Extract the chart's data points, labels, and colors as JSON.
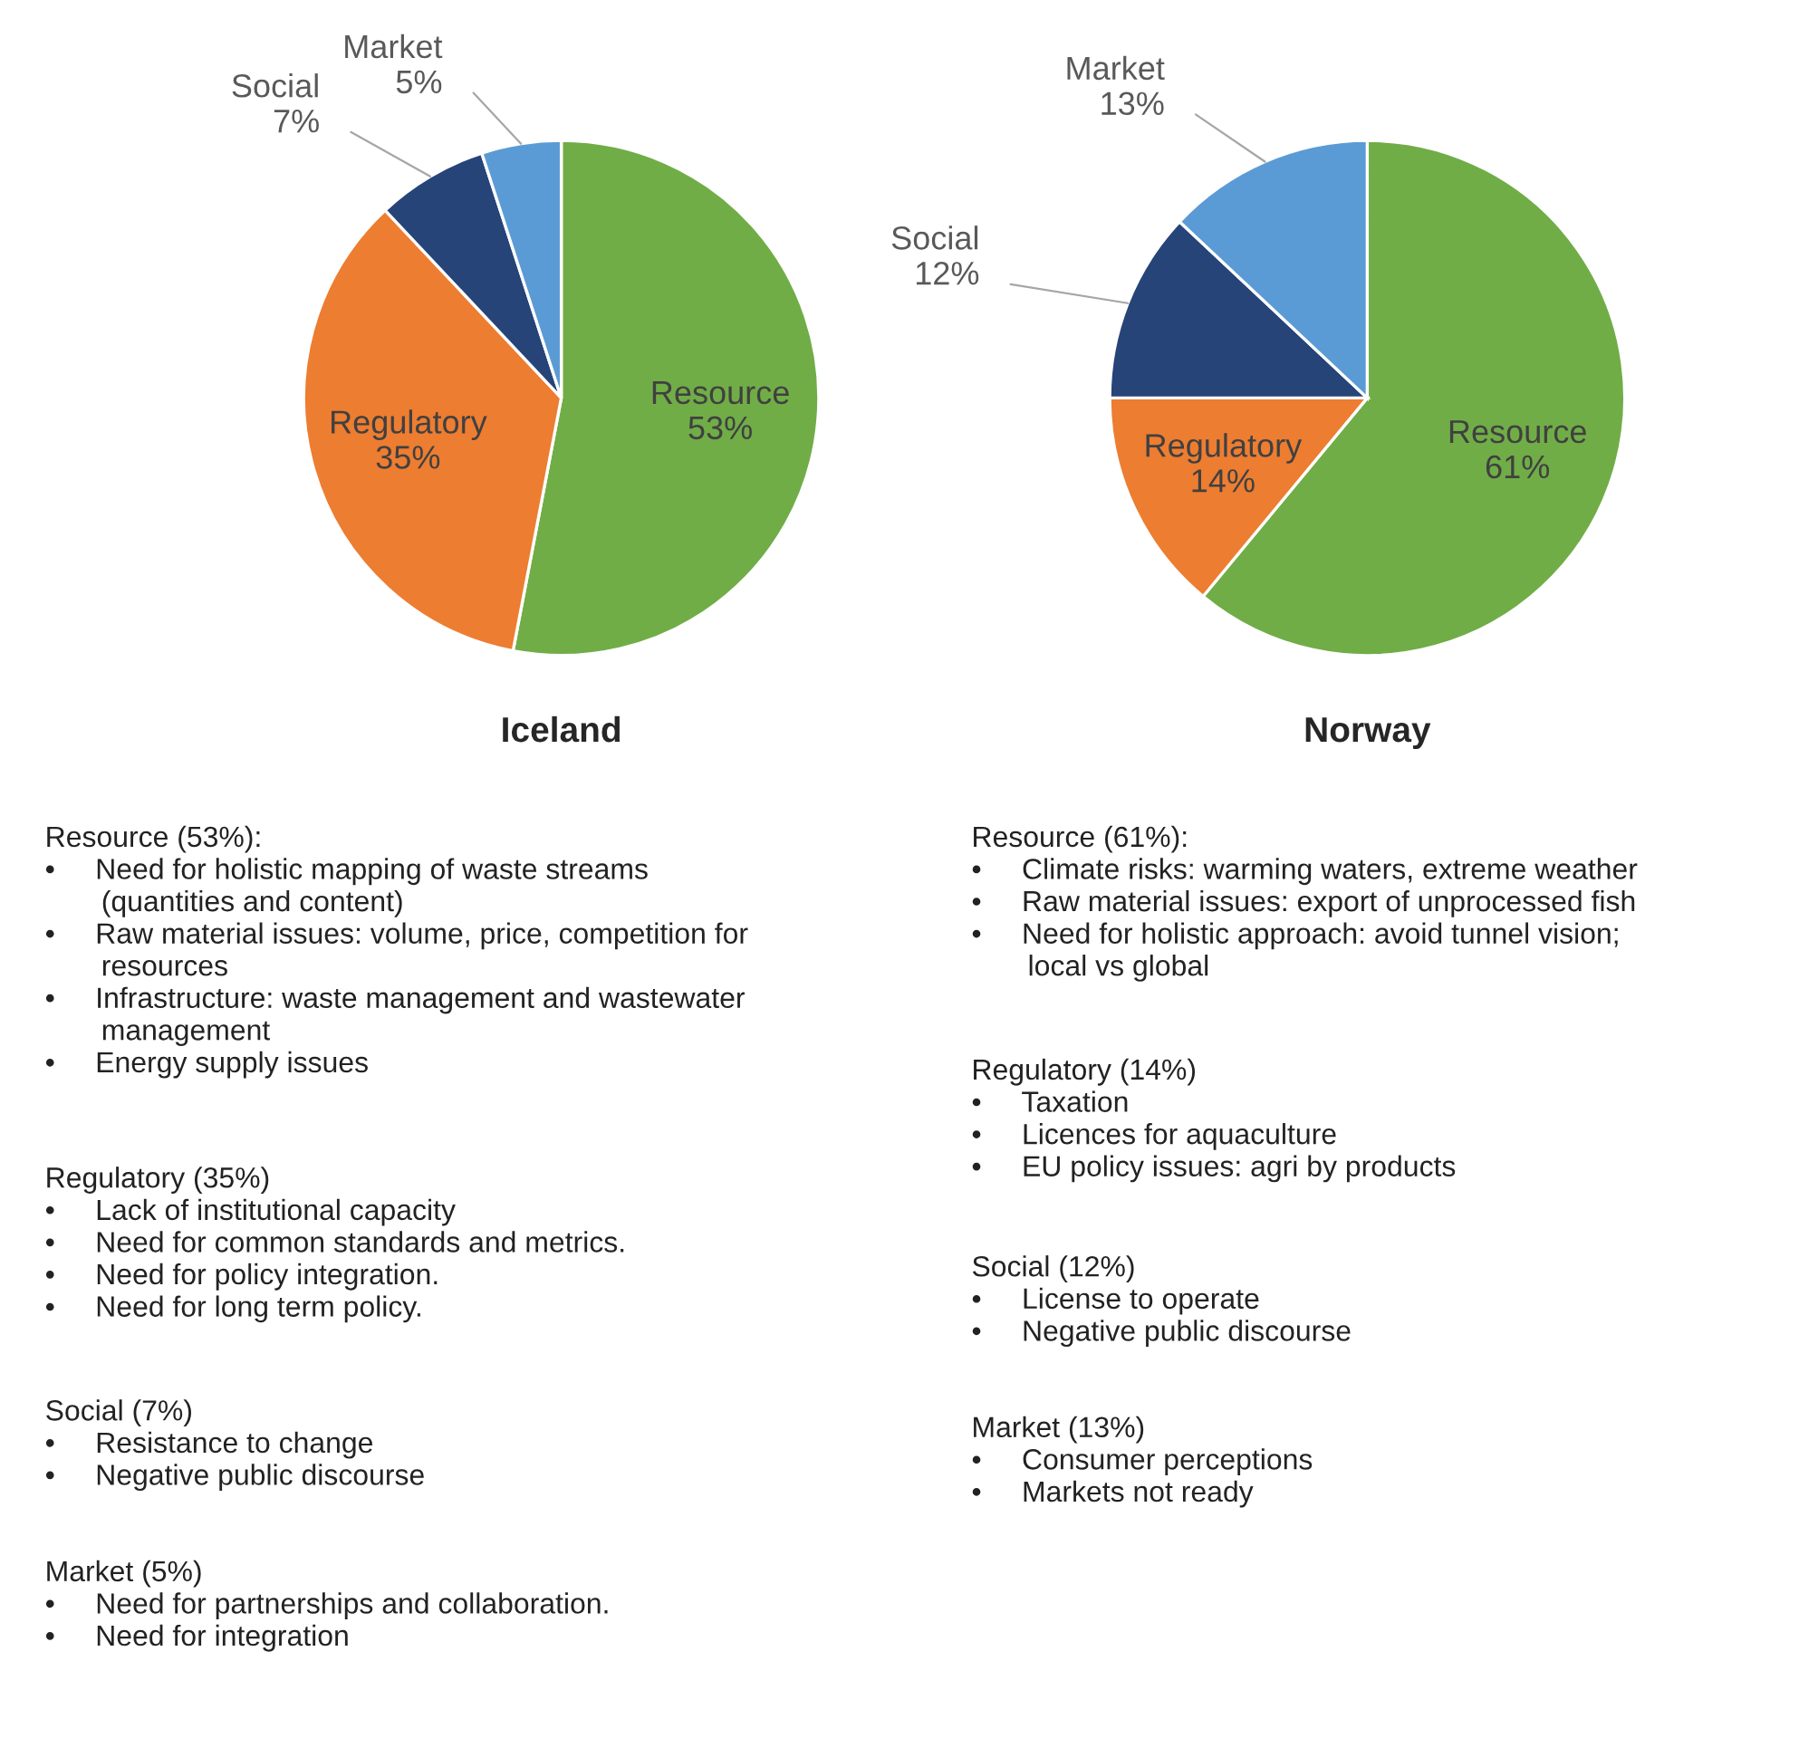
{
  "chart_data": [
    {
      "type": "pie",
      "title": "Iceland",
      "categories": [
        "Resource",
        "Regulatory",
        "Social",
        "Market"
      ],
      "values": [
        53,
        35,
        7,
        5
      ],
      "value_labels": [
        "53%",
        "35%",
        "7%",
        "5%"
      ],
      "colors": [
        "#70ad47",
        "#ed7d31",
        "#264478",
        "#5b9bd5"
      ],
      "annotations": [
        "Resource (53%):\n•     Need for holistic mapping of waste streams\n       (quantities and content)\n•     Raw material issues: volume, price, competition for\n       resources\n•     Infrastructure: waste management and wastewater\n       management\n•     Energy supply issues",
        "Regulatory (35%)\n•     Lack of institutional capacity\n•     Need for common standards and metrics.\n•     Need for policy integration.\n•     Need for long term policy.",
        "Social (7%)\n•     Resistance to change\n•     Negative public discourse",
        "Market (5%)\n•     Need for partnerships and collaboration.\n•     Need for integration"
      ]
    },
    {
      "type": "pie",
      "title": "Norway",
      "categories": [
        "Resource",
        "Regulatory",
        "Social",
        "Market"
      ],
      "values": [
        61,
        14,
        12,
        13
      ],
      "value_labels": [
        "61%",
        "14%",
        "12%",
        "13%"
      ],
      "colors": [
        "#70ad47",
        "#ed7d31",
        "#264478",
        "#5b9bd5"
      ],
      "annotations": [
        "Resource (61%):\n•     Climate risks: warming waters, extreme weather\n•     Raw material issues: export of unprocessed fish\n•     Need for holistic approach: avoid tunnel vision;\n       local vs global",
        "Regulatory (14%)\n•     Taxation\n•     Licences for aquaculture\n•     EU policy issues: agri by products",
        "Social (12%)\n•     License to operate\n•     Negative public discourse",
        "Market (13%)\n•     Consumer perceptions\n•     Markets not ready"
      ]
    }
  ]
}
